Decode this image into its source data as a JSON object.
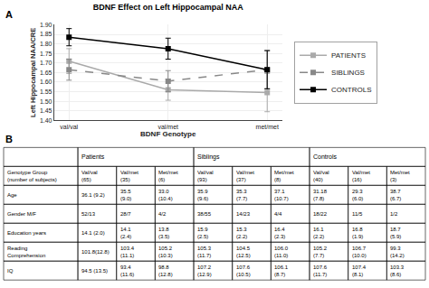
{
  "chart_data": [
    {
      "type": "line",
      "title": "BDNF Effect on Left Hippocampal NAA",
      "xlabel": "BDNF Genotype",
      "ylabel": "Left Hippocampal NAA/CRE",
      "categories": [
        "val/val",
        "val/met",
        "met/met"
      ],
      "series": [
        {
          "name": "PATIENTS",
          "color": "#aaaaaa",
          "line_style": "solid",
          "marker": "square",
          "values": [
            1.71,
            1.56,
            1.545
          ],
          "err_low": [
            0.065,
            0.055,
            0.1
          ],
          "err_high": [
            0.065,
            0.055,
            0.1
          ]
        },
        {
          "name": "SIBLINGS",
          "color": "#888888",
          "line_style": "dashed",
          "marker": "square",
          "values": [
            1.665,
            1.605,
            1.665
          ],
          "err_low": [
            0.055,
            0.055,
            0.1
          ],
          "err_high": [
            0.055,
            0.055,
            0.1
          ]
        },
        {
          "name": "CONTROLS",
          "color": "#000000",
          "line_style": "solid",
          "marker": "square",
          "values": [
            1.835,
            1.775,
            1.665
          ],
          "err_low": [
            0.045,
            0.055,
            0.1
          ],
          "err_high": [
            0.045,
            0.055,
            0.1
          ]
        }
      ],
      "ylim": [
        1.4,
        1.9
      ],
      "yticks": [
        {
          "value": 1.4,
          "label": "1.40"
        },
        1.45,
        {
          "value": 1.5,
          "label": "1.50"
        },
        1.55,
        {
          "value": 1.6,
          "label": "1.60"
        },
        1.65,
        {
          "value": 1.7,
          "label": "1.70"
        },
        1.75,
        {
          "value": 1.8,
          "label": "1.80"
        },
        1.85,
        {
          "value": 1.9,
          "label": "1.90"
        }
      ],
      "grid": true,
      "legend": "right",
      "annotations": [
        "A"
      ]
    },
    {
      "type": "table",
      "annotations": [
        "B"
      ],
      "group_headers": [
        {
          "label": "Patients",
          "col_start": 1,
          "col_end": 3
        },
        {
          "label": "Siblings",
          "col_start": 4,
          "col_end": 6
        },
        {
          "label": "Controls",
          "col_start": 7,
          "col_end": 9
        }
      ],
      "rows": [
        [
          "Genotype Group\n(number of subjects)",
          "Val/val\n(65)",
          "Val/met\n(35)",
          "Met/met\n(6)",
          "Val/val\n(93)",
          "Val/met\n(37)",
          "Met/met\n(8)",
          "Val/val\n(40)",
          "Val/met\n(16)",
          "Met/met\n(3)"
        ],
        [
          "Age",
          "36.1 (9.2)",
          "35.5\n(9.0)",
          "33.0\n(10.4)",
          "35.9\n(9.6)",
          "35.3\n(7.7)",
          "37.1\n(10.7)",
          "31.18\n(7.8)",
          "29.3\n(6.0)",
          "38.7\n(6.7)"
        ],
        [
          "Gender M/F",
          "52/13",
          "28/7",
          "4/2",
          "38/55",
          "14/23",
          "4/4",
          "18/22",
          "11/5",
          "1/2"
        ],
        [
          "Education years",
          "14.1 (2.0)",
          "14.1\n(2.4)",
          "13.8\n(3.5)",
          "15.9\n(2.5)",
          "15.3\n(2.2)",
          "16.4\n(2.3)",
          "16.1\n(2.2)",
          "16.8\n(1.9)",
          "18.7\n(5.9)"
        ],
        [
          "Reading\nComprehension",
          "101.8(12.8)",
          "103.4\n(11.1)",
          "105.2\n(10.3)",
          "105.3\n(11.7)",
          "104.5\n(12.5)",
          "106.0\n(11.0)",
          "105.2\n(7.7)",
          "106.7\n(10.0)",
          "99.3\n(14.2)"
        ],
        [
          "IQ",
          "94.5 (13.5)",
          "93.4\n(11.6)",
          "98.8\n(12.8)",
          "107.2\n(12.9)",
          "107.6\n(10.5)",
          "106.1\n(8.7)",
          "107.6\n(11.7)",
          "107.4\n(8.1)",
          "103.3\n(8.6)"
        ]
      ]
    }
  ]
}
